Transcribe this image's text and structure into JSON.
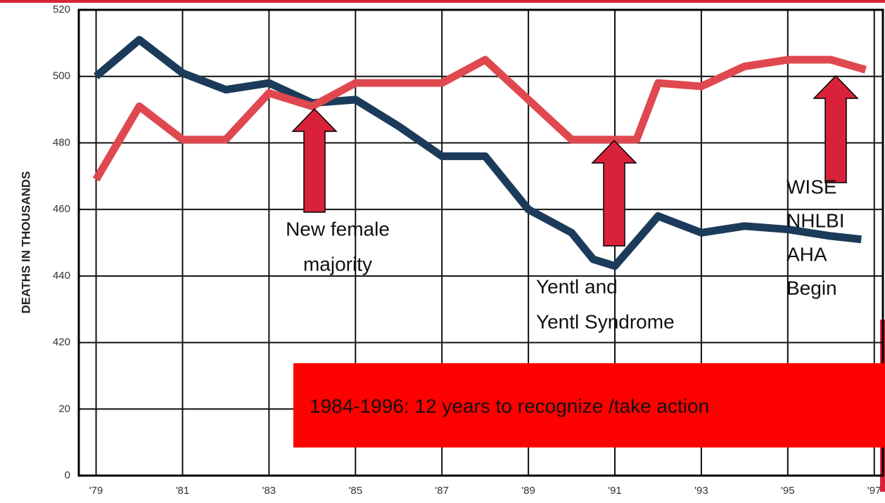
{
  "chart_data": {
    "type": "line",
    "y_label": "DEATHS IN THOUSANDS",
    "ylim": [
      0,
      520
    ],
    "yticks": [
      0,
      20,
      420,
      440,
      460,
      480,
      500,
      520
    ],
    "xlim": [
      1978.6,
      1997.2
    ],
    "xticks": [
      {
        "value": 1979,
        "label": "'79"
      },
      {
        "value": 1981,
        "label": "'81"
      },
      {
        "value": 1983,
        "label": "'83"
      },
      {
        "value": 1985,
        "label": "'85"
      },
      {
        "value": 1987,
        "label": "'87"
      },
      {
        "value": 1989,
        "label": "'89"
      },
      {
        "value": 1991,
        "label": "'91"
      },
      {
        "value": 1993,
        "label": "'93"
      },
      {
        "value": 1995,
        "label": "'95"
      },
      {
        "value": 1997,
        "label": "'97"
      }
    ],
    "grid": true,
    "series": [
      {
        "color": "#1c3b5a",
        "x": [
          1979,
          1980,
          1981,
          1982,
          1983,
          1984,
          1985,
          1986,
          1987,
          1988,
          1989,
          1990,
          1990.5,
          1991,
          1992,
          1993,
          1994,
          1995,
          1996,
          1996.7
        ],
        "values": [
          500,
          511,
          501,
          496,
          498,
          492,
          493,
          485,
          476,
          476,
          460,
          453,
          445,
          443,
          458,
          453,
          455,
          454,
          452,
          451
        ]
      },
      {
        "color": "#e0484f",
        "x": [
          1979,
          1980,
          1981,
          1982,
          1983,
          1984,
          1985,
          1986,
          1987,
          1988,
          1989,
          1990,
          1991,
          1991.5,
          1992,
          1993,
          1994,
          1995,
          1996,
          1996.8
        ],
        "values": [
          469,
          491,
          481,
          481,
          495,
          491,
          498,
          498,
          498,
          505,
          493,
          481,
          481,
          481,
          498,
          497,
          503,
          505,
          505,
          502
        ]
      }
    ],
    "annotations": [
      {
        "lines": [
          "New female",
          "majority"
        ]
      },
      {
        "lines": [
          "Yentl and",
          "Yentl Syndrome"
        ]
      },
      {
        "lines": [
          "WISE",
          "NHLBI",
          "AHA",
          "Begin"
        ]
      }
    ],
    "banner": "1984-1996: 12 years to recognize /take action"
  }
}
